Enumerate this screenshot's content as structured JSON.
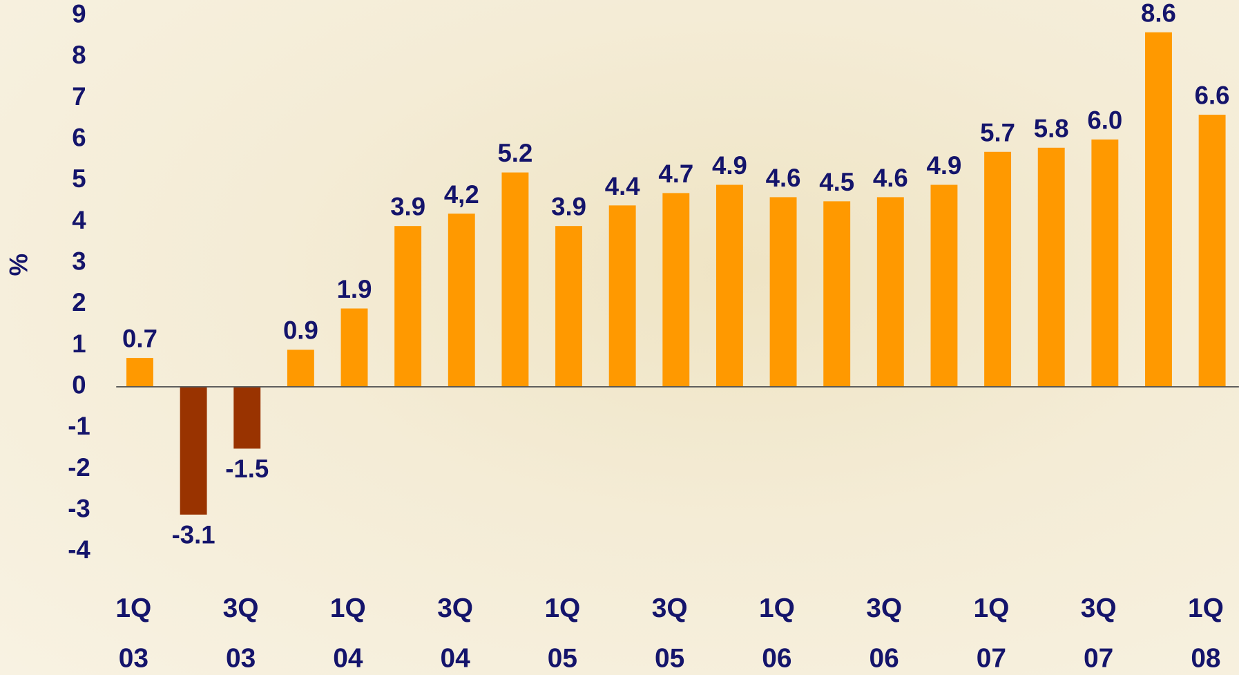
{
  "chart_data": {
    "type": "bar",
    "y_label": "%",
    "categories": [
      "1Q\n03",
      null,
      "3Q\n03",
      null,
      "1Q\n04",
      null,
      "3Q\n04",
      null,
      "1Q\n05",
      null,
      "3Q\n05",
      null,
      "1Q\n06",
      null,
      "3Q\n06",
      null,
      "1Q\n07",
      null,
      "3Q\n07",
      null,
      "1Q\n08"
    ],
    "values": [
      0.7,
      -3.1,
      -1.5,
      0.9,
      1.9,
      3.9,
      4.2,
      5.2,
      3.9,
      4.4,
      4.7,
      4.9,
      4.6,
      4.5,
      4.6,
      4.9,
      5.7,
      5.8,
      6.0,
      8.6,
      6.6
    ],
    "value_labels": [
      "0.7",
      "-3.1",
      "-1.5",
      "0.9",
      "1.9",
      "3.9",
      "4,2",
      "5.2",
      "3.9",
      "4.4",
      "4.7",
      "4.9",
      "4.6",
      "4.5",
      "4.6",
      "4.9",
      "5.7",
      "5.8",
      "6.0",
      "8.6",
      "6.6"
    ],
    "color": "#ff9900",
    "negative_color": "#993300",
    "ylim": [
      -4,
      9
    ],
    "yticks": [
      -4,
      -3,
      -2,
      -1,
      0,
      1,
      2,
      3,
      4,
      5,
      6,
      7,
      8,
      9
    ],
    "grid": false
  }
}
